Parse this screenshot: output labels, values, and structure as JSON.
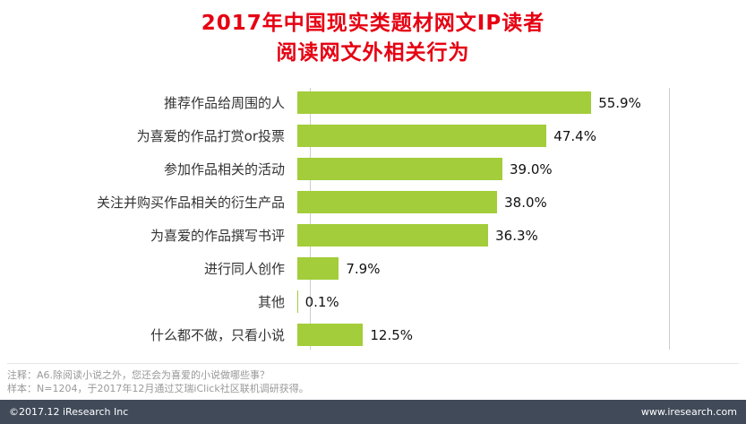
{
  "title": {
    "line1": "2017年中国现实类题材网文IP读者",
    "line2": "阅读网文外相关行为"
  },
  "chart_data": {
    "type": "bar",
    "orientation": "horizontal",
    "title": "2017年中国现实类题材网文IP读者阅读网文外相关行为",
    "categories": [
      "推荐作品给周围的人",
      "为喜爱的作品打赏or投票",
      "参加作品相关的活动",
      "关注并购买作品相关的衍生产品",
      "为喜爱的作品撰写书评",
      "进行同人创作",
      "其他",
      "什么都不做，只看小说"
    ],
    "values": [
      55.9,
      47.4,
      39.0,
      38.0,
      36.3,
      7.9,
      0.1,
      12.5
    ],
    "value_labels": [
      "55.9%",
      "47.4%",
      "39.0%",
      "38.0%",
      "36.3%",
      "7.9%",
      "0.1%",
      "12.5%"
    ],
    "xlim": [
      0,
      70
    ],
    "grid": "off",
    "legend": "none"
  },
  "notes": {
    "note1": "注释：A6.除阅读小说之外，您还会为喜爱的小说做哪些事？",
    "note2": "样本：N=1204，于2017年12月通过艾瑞iClick社区联机调研获得。"
  },
  "footer": {
    "left": "©2017.12 iResearch Inc",
    "right": "www.iresearch.com"
  },
  "colors": {
    "title": "#e60012",
    "bar": "#a3cd3a",
    "footer_bg": "#404a59"
  }
}
